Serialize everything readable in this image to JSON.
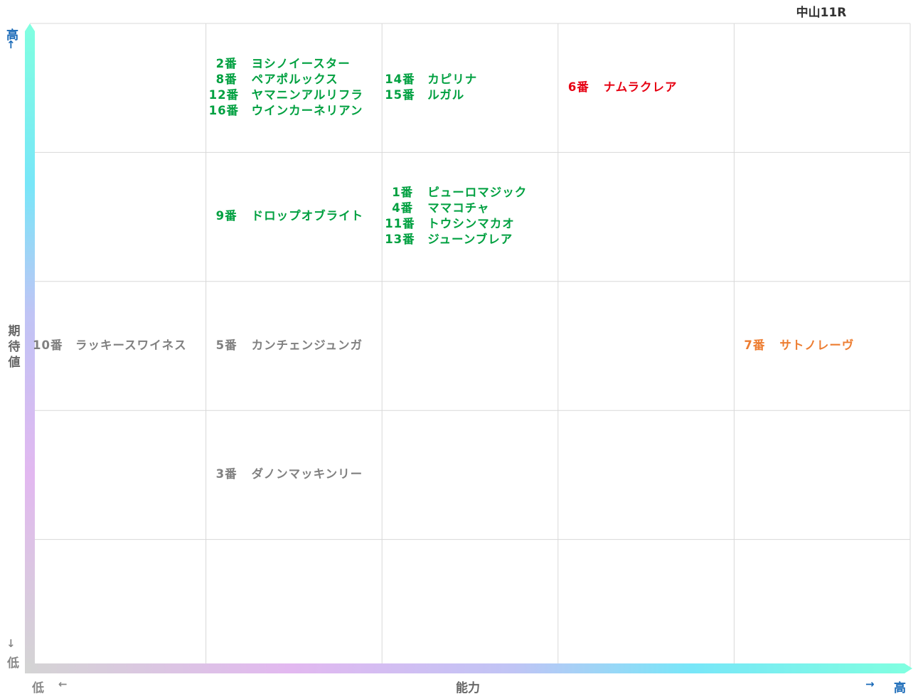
{
  "chart_data": {
    "type": "table",
    "title": "中山11R",
    "xlabel": "能力",
    "ylabel": "期待値",
    "x_axis": {
      "low": "低",
      "high": "高",
      "low_arrow": "←",
      "high_arrow": "→"
    },
    "y_axis": {
      "low": "低",
      "high": "高",
      "low_arrow": "↓",
      "high_arrow": "↑"
    },
    "columns": 5,
    "rows": 5,
    "cells": [
      {
        "col": 2,
        "row": 1,
        "entries": [
          {
            "num": "2番",
            "name": "ヨシノイースター",
            "color": "#00a040"
          },
          {
            "num": "8番",
            "name": "ペアポルックス",
            "color": "#00a040"
          },
          {
            "num": "12番",
            "name": "ヤマニンアルリフラ",
            "color": "#00a040"
          },
          {
            "num": "16番",
            "name": "ウインカーネリアン",
            "color": "#00a040"
          }
        ]
      },
      {
        "col": 3,
        "row": 1,
        "entries": [
          {
            "num": "14番",
            "name": "カピリナ",
            "color": "#00a040"
          },
          {
            "num": "15番",
            "name": "ルガル",
            "color": "#00a040"
          }
        ]
      },
      {
        "col": 4,
        "row": 1,
        "entries": [
          {
            "num": "6番",
            "name": "ナムラクレア",
            "color": "#e60012"
          }
        ]
      },
      {
        "col": 2,
        "row": 2,
        "entries": [
          {
            "num": "9番",
            "name": "ドロップオブライト",
            "color": "#00a040"
          }
        ]
      },
      {
        "col": 3,
        "row": 2,
        "entries": [
          {
            "num": "1番",
            "name": "ピューロマジック",
            "color": "#00a040"
          },
          {
            "num": "4番",
            "name": "ママコチャ",
            "color": "#00a040"
          },
          {
            "num": "11番",
            "name": "トウシンマカオ",
            "color": "#00a040"
          },
          {
            "num": "13番",
            "name": "ジューンブレア",
            "color": "#00a040"
          }
        ]
      },
      {
        "col": 1,
        "row": 3,
        "entries": [
          {
            "num": "10番",
            "name": "ラッキースワイネス",
            "color": "#808080"
          }
        ]
      },
      {
        "col": 2,
        "row": 3,
        "entries": [
          {
            "num": "5番",
            "name": "カンチェンジュンガ",
            "color": "#808080"
          }
        ]
      },
      {
        "col": 5,
        "row": 3,
        "entries": [
          {
            "num": "7番",
            "name": "サトノレーヴ",
            "color": "#ed7d31"
          }
        ]
      },
      {
        "col": 2,
        "row": 4,
        "entries": [
          {
            "num": "3番",
            "name": "ダノンマッキンリー",
            "color": "#808080"
          }
        ]
      }
    ]
  }
}
